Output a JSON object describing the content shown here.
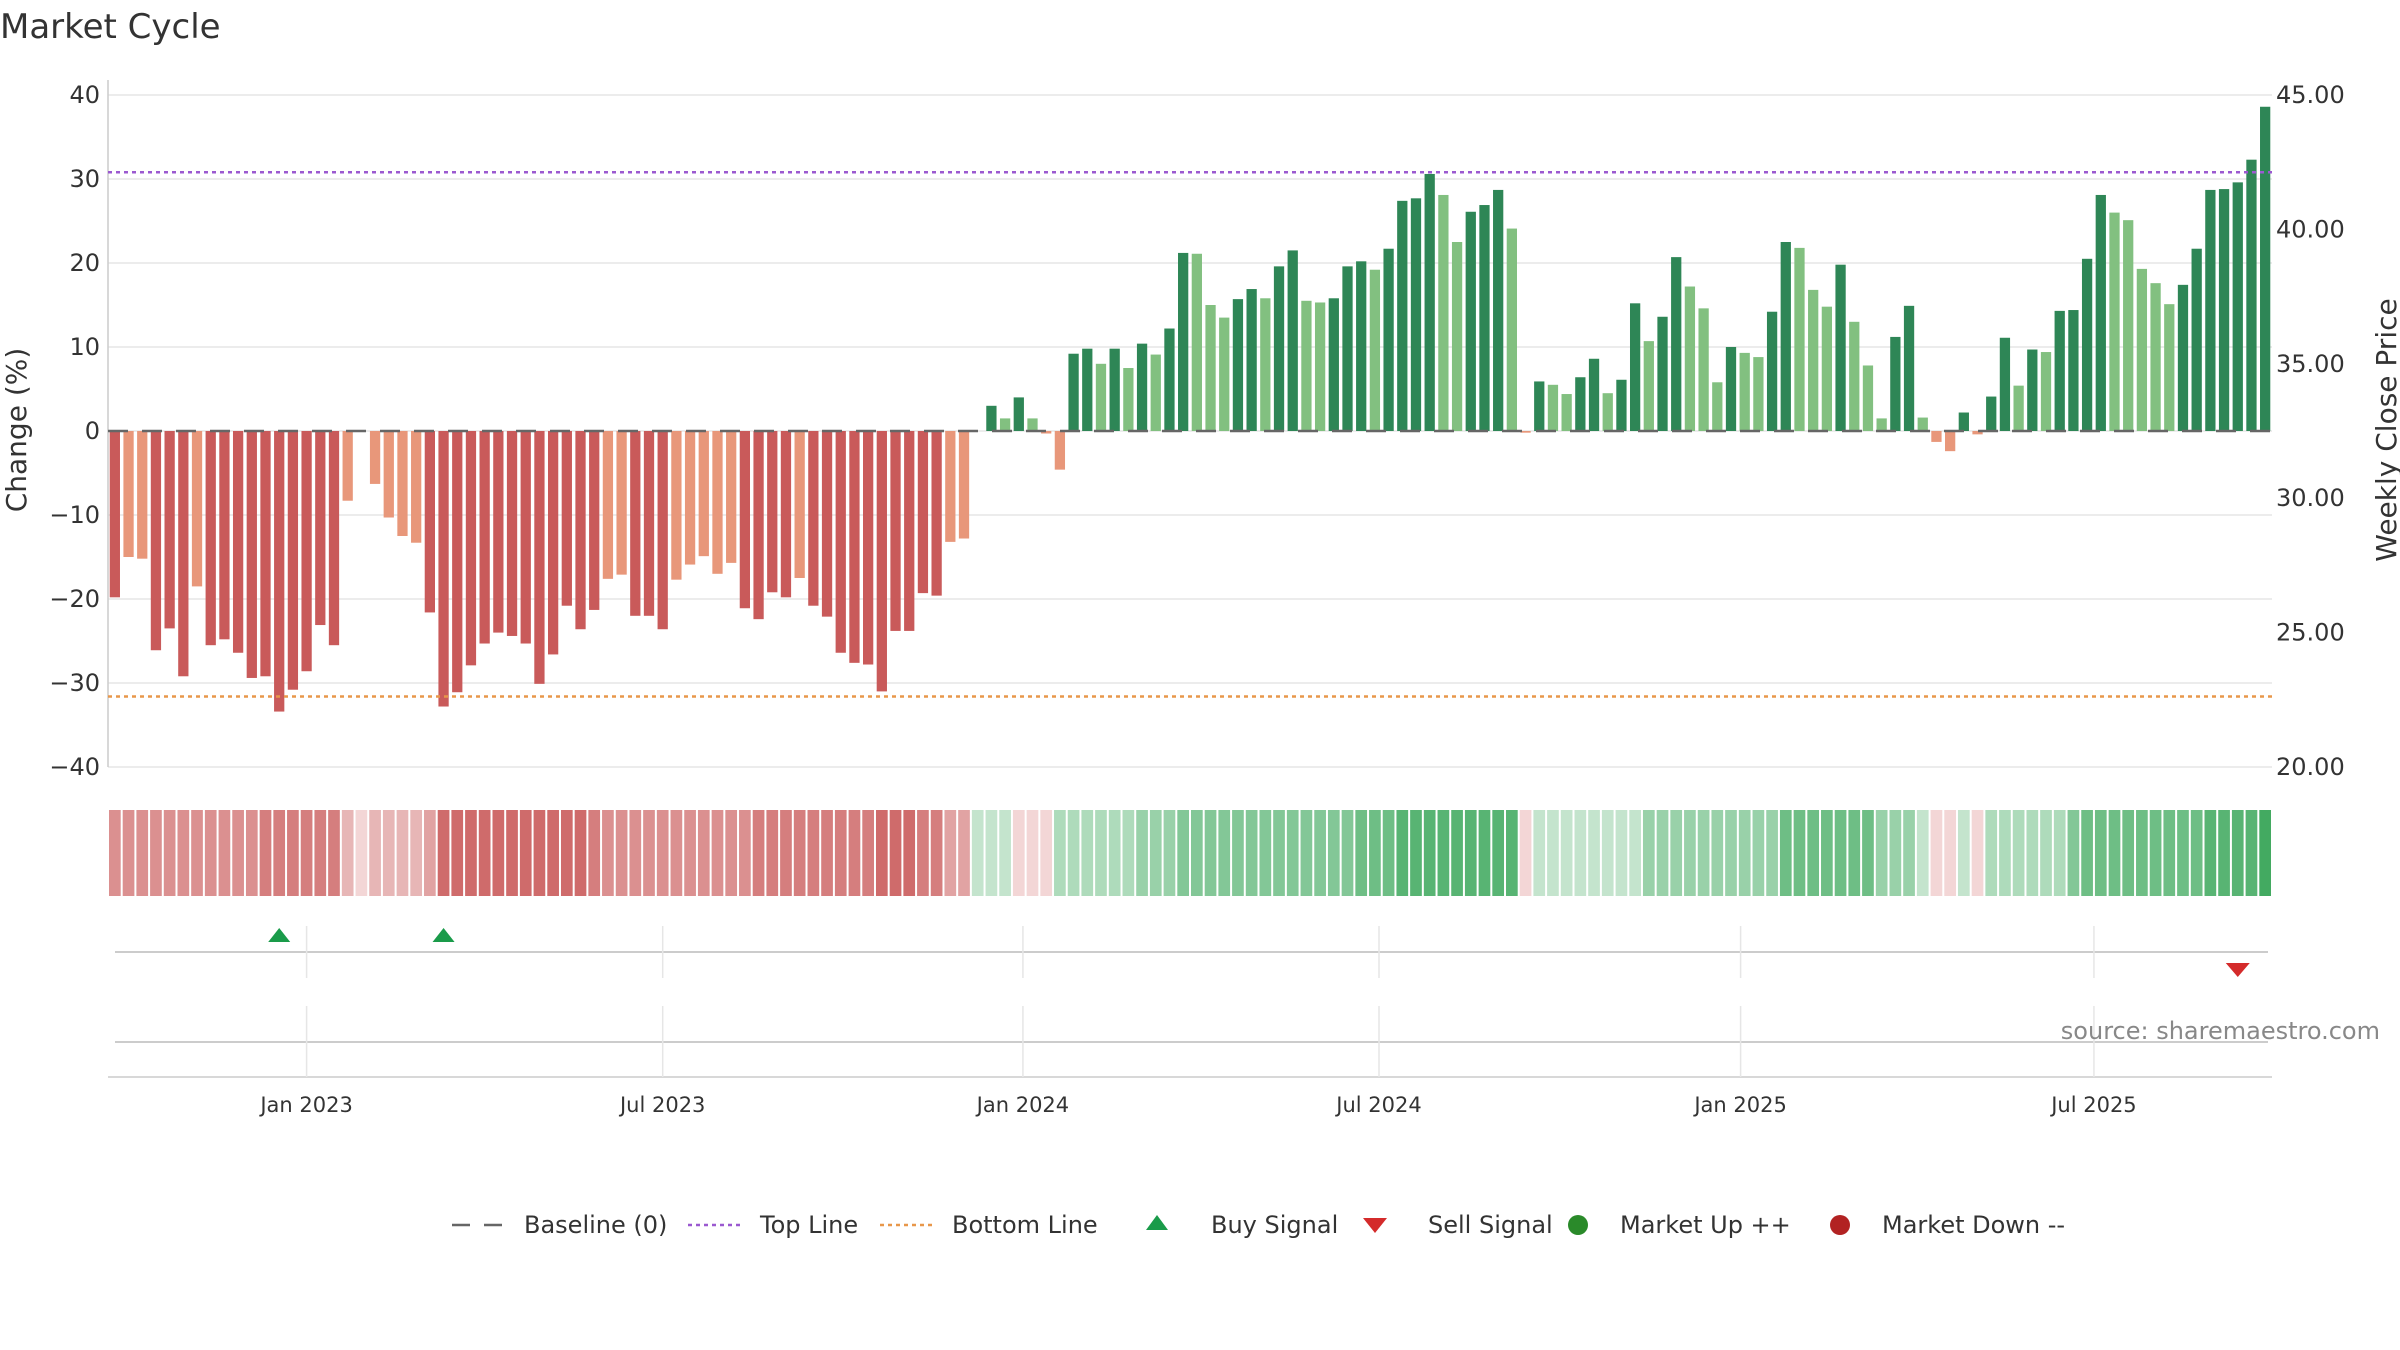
{
  "chart_data": {
    "type": "bar",
    "title": "Market Cycle",
    "ylabel": "Change (%)",
    "y2label": "Weekly Close Price",
    "ylim": [
      -40,
      40
    ],
    "y2lim": [
      20,
      45
    ],
    "yticks": [
      40,
      30,
      20,
      10,
      0,
      -10,
      -20,
      -30,
      -40
    ],
    "ytick_labels": [
      "40",
      "30",
      "20",
      "10",
      "0",
      "−10",
      "−20",
      "−30",
      "−40"
    ],
    "y2ticks": [
      45,
      40,
      35,
      30,
      25,
      20
    ],
    "y2tick_labels": [
      "45.00",
      "40.00",
      "35.00",
      "30.00",
      "25.00",
      "20.00"
    ],
    "top_line": 30.8,
    "bottom_line": -31.6,
    "grid": true,
    "x_ticks": [
      {
        "label": "Jan 2023",
        "week": 14.5
      },
      {
        "label": "Jul 2023",
        "week": 40.5
      },
      {
        "label": "Jan 2024",
        "week": 66.8
      },
      {
        "label": "Jul 2024",
        "week": 92.8
      },
      {
        "label": "Jan 2025",
        "week": 119.2
      },
      {
        "label": "Jul 2025",
        "week": 145.0
      }
    ],
    "values": [
      -19.8,
      -15,
      -15.2,
      -26.1,
      -23.5,
      -29.2,
      -18.5,
      -25.5,
      -24.8,
      -26.4,
      -29.4,
      -29.2,
      -33.4,
      -30.8,
      -28.6,
      -23.1,
      -25.5,
      -8.3,
      null,
      -6.3,
      -10.3,
      -12.5,
      -13.3,
      -21.6,
      -32.8,
      -31.1,
      -27.9,
      -25.3,
      -24,
      -24.4,
      -25.3,
      -30.1,
      -26.6,
      -20.8,
      -23.6,
      -21.3,
      -17.6,
      -17.1,
      -22,
      -22,
      -23.6,
      -17.7,
      -15.9,
      -14.9,
      -17,
      -15.7,
      -21.1,
      -22.4,
      -19.2,
      -19.8,
      -17.5,
      -20.8,
      -22.1,
      -26.4,
      -27.6,
      -27.8,
      -31,
      -23.8,
      -23.8,
      -19.3,
      -19.6,
      -13.2,
      -12.8,
      null,
      3,
      1.5,
      4,
      1.5,
      -0.3,
      -4.6,
      9.2,
      9.8,
      8,
      9.8,
      7.5,
      10.4,
      9.1,
      12.2,
      21.2,
      21.1,
      15,
      13.5,
      15.7,
      16.9,
      15.8,
      19.6,
      21.5,
      15.5,
      15.3,
      15.8,
      19.6,
      20.2,
      19.2,
      21.7,
      27.4,
      27.7,
      30.6,
      28.1,
      22.5,
      26.1,
      26.9,
      28.7,
      24.1,
      -0.2,
      5.9,
      5.5,
      4.4,
      6.4,
      8.6,
      4.5,
      6.1,
      15.2,
      10.7,
      13.6,
      20.7,
      17.2,
      14.6,
      5.8,
      10,
      9.3,
      8.8,
      14.2,
      22.5,
      21.8,
      16.8,
      14.8,
      19.8,
      13,
      7.8,
      1.5,
      11.2,
      14.9,
      1.6,
      -1.3,
      -2.4,
      2.2,
      -0.4,
      4.1,
      11.1,
      5.4,
      9.7,
      9.4,
      14.3,
      14.4,
      20.5,
      28.1,
      26,
      25.1,
      19.3,
      17.6,
      15.1,
      17.4,
      21.7,
      28.7,
      28.8,
      29.6,
      32.3,
      38.6
    ],
    "strip_levels": [
      4,
      4,
      4,
      4,
      4,
      4,
      4,
      4,
      4,
      4,
      4,
      5,
      5,
      5,
      5,
      5,
      5,
      2,
      0,
      2,
      2,
      2,
      2,
      3,
      6,
      6,
      6,
      6,
      6,
      6,
      6,
      6,
      6,
      6,
      6,
      5,
      4,
      4,
      4,
      4,
      4,
      4,
      4,
      4,
      4,
      4,
      4,
      5,
      5,
      5,
      5,
      5,
      5,
      5,
      5,
      5,
      6,
      6,
      6,
      5,
      5,
      3,
      3,
      -1,
      -1,
      -1,
      0,
      0,
      0,
      -2,
      -2,
      -2,
      -2,
      -2,
      -2,
      -3,
      -3,
      -3,
      -4,
      -4,
      -4,
      -4,
      -4,
      -4,
      -4,
      -4,
      -4,
      -4,
      -4,
      -4,
      -4,
      -5,
      -5,
      -5,
      -6,
      -6,
      -6,
      -6,
      -6,
      -6,
      -6,
      -6,
      -6,
      0,
      -1,
      -1,
      -1,
      -1,
      -1,
      -1,
      -1,
      -1,
      -3,
      -3,
      -3,
      -3,
      -3,
      -3,
      -3,
      -3,
      -3,
      -3,
      -5,
      -5,
      -5,
      -5,
      -5,
      -5,
      -5,
      -3,
      -3,
      -3,
      -1,
      0,
      0,
      -1,
      0,
      -2,
      -2,
      -2,
      -2,
      -2,
      -2,
      -4,
      -5,
      -5,
      -5,
      -5,
      -5,
      -5,
      -5,
      -5,
      -5,
      -6,
      -6,
      -6,
      -6,
      -7
    ],
    "buy_signals": [
      12,
      24
    ],
    "sell_signals": [
      155
    ],
    "source_text": "source: sharemaestro.com",
    "colors": {
      "dark_red": "#c95a5a",
      "light_red": "#e8977a",
      "dark_green": "#2e8656",
      "light_green": "#82c080",
      "top_line": "#9b59d0",
      "bottom_line": "#e8974a",
      "baseline": "#666666",
      "buy": "#1a9b4a",
      "sell": "#d42b2b",
      "market_up": "#2a8a2a",
      "market_down": "#b22222",
      "grid": "#e6e6e6"
    },
    "legend": {
      "position": "bottom-center",
      "items": [
        {
          "label": "Baseline (0)",
          "symbol": "dash",
          "color": "#666666"
        },
        {
          "label": "Top Line",
          "symbol": "dot",
          "color": "#9b59d0"
        },
        {
          "label": "Bottom Line",
          "symbol": "dot",
          "color": "#e8974a"
        },
        {
          "label": "Buy Signal",
          "symbol": "triangle-up",
          "color": "#1a9b4a"
        },
        {
          "label": "Sell Signal",
          "symbol": "triangle-down",
          "color": "#d42b2b"
        },
        {
          "label": "Market Up ++",
          "symbol": "circle",
          "color": "#2a8a2a"
        },
        {
          "label": "Market Down --",
          "symbol": "circle",
          "color": "#b22222"
        }
      ]
    }
  }
}
